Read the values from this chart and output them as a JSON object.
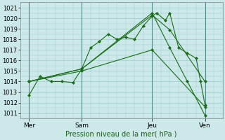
{
  "xlabel": "Pression niveau de la mer( hPa )",
  "bg_color": "#cce8e8",
  "grid_color": "#99cccc",
  "line_color": "#1a6b1a",
  "ylim": [
    1010.5,
    1021.5
  ],
  "yticks": [
    1011,
    1012,
    1013,
    1014,
    1015,
    1016,
    1017,
    1018,
    1019,
    1020,
    1021
  ],
  "xtick_labels": [
    "Mer",
    "Sam",
    "Jeu",
    "Ven"
  ],
  "xtick_positions": [
    0,
    24,
    56,
    80
  ],
  "xlim": [
    -4,
    88
  ],
  "vlines": [
    0,
    24,
    56,
    80
  ],
  "lines": [
    {
      "x": [
        0,
        5,
        10,
        15,
        20,
        24,
        28,
        32,
        36,
        40,
        44,
        48,
        52,
        56,
        58,
        62,
        64,
        68,
        72,
        76,
        78,
        80
      ],
      "y": [
        1012.7,
        1014.5,
        1014.0,
        1014.0,
        1013.9,
        1015.2,
        1017.2,
        1017.8,
        1018.5,
        1018.0,
        1018.2,
        1018.0,
        1019.3,
        1020.2,
        1020.5,
        1019.8,
        1020.5,
        1017.2,
        1016.7,
        1016.2,
        1014.0,
        1011.8
      ]
    },
    {
      "x": [
        0,
        24,
        56,
        64,
        80
      ],
      "y": [
        1014.0,
        1015.2,
        1020.3,
        1018.9,
        1014.0
      ]
    },
    {
      "x": [
        0,
        24,
        56,
        64,
        72,
        80
      ],
      "y": [
        1014.0,
        1015.2,
        1020.5,
        1017.2,
        1014.0,
        1010.8
      ]
    },
    {
      "x": [
        0,
        24,
        56,
        80
      ],
      "y": [
        1014.0,
        1015.0,
        1017.0,
        1011.6
      ]
    }
  ]
}
